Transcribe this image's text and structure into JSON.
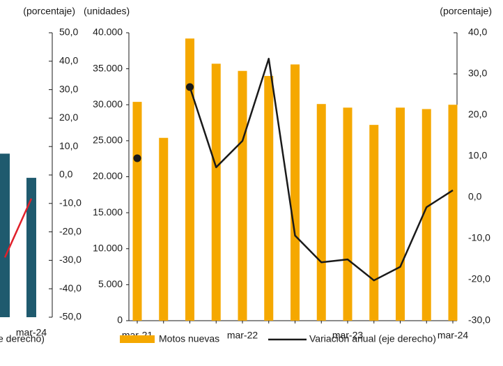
{
  "chart_data": [
    {
      "type": "combo",
      "y2label": "(porcentaje)",
      "y2lim": [
        -50,
        50
      ],
      "y2ticks": [
        {
          "value": 50,
          "label": "50,0"
        },
        {
          "value": 40,
          "label": "40,0"
        },
        {
          "value": 30,
          "label": "30,0"
        },
        {
          "value": 20,
          "label": "20,0"
        },
        {
          "value": 10,
          "label": "10,0"
        },
        {
          "value": 0,
          "label": "0,0"
        },
        {
          "value": -10,
          "label": "-10,0"
        },
        {
          "value": -20,
          "label": "-20,0"
        },
        {
          "value": -30,
          "label": "-30,0"
        },
        {
          "value": -40,
          "label": "-40,0"
        },
        {
          "value": -50,
          "label": "-50,0"
        }
      ],
      "categories": [
        null,
        "mar-24"
      ],
      "series": [
        {
          "kind": "bar",
          "axis": "y2",
          "color": "#1f5a6e",
          "values": [
            7.5,
            -1.0
          ]
        },
        {
          "kind": "line",
          "axis": "y2",
          "name": "e derecho)",
          "color": "#e0202a",
          "values": [
            -29,
            -8.3
          ]
        }
      ]
    },
    {
      "type": "combo",
      "ylabel": "(unidades)",
      "y2label": "(porcentaje)",
      "ylim": [
        0,
        40000
      ],
      "yticks": [
        0,
        {
          "value": 5000,
          "label": "5.000"
        },
        {
          "value": 10000,
          "label": "10.000"
        },
        {
          "value": 15000,
          "label": "15.000"
        },
        {
          "value": 20000,
          "label": "20.000"
        },
        {
          "value": 25000,
          "label": "25.000"
        },
        {
          "value": 30000,
          "label": "30.000"
        },
        {
          "value": 35000,
          "label": "35.000"
        },
        {
          "value": 40000,
          "label": "40.000"
        }
      ],
      "y2lim": [
        -30,
        40
      ],
      "y2ticks": [
        {
          "value": 40,
          "label": "40,0"
        },
        {
          "value": 30,
          "label": "30,0"
        },
        {
          "value": 20,
          "label": "20,0"
        },
        {
          "value": 10,
          "label": "10,0"
        },
        {
          "value": 0,
          "label": "0,0"
        },
        {
          "value": -10,
          "label": "-10,0"
        },
        {
          "value": -20,
          "label": "-20,0"
        },
        {
          "value": -30,
          "label": "-30,0"
        }
      ],
      "categories": [
        "mar-21",
        null,
        null,
        null,
        "mar-22",
        null,
        null,
        null,
        "mar-23",
        null,
        null,
        null,
        "mar-24"
      ],
      "series": [
        {
          "kind": "bar",
          "name": "Motos nuevas",
          "color": "#f5a800",
          "values": [
            30400,
            25400,
            39200,
            35700,
            34700,
            34000,
            35600,
            30100,
            29600,
            27200,
            29600,
            29400,
            30000
          ]
        },
        {
          "kind": "line",
          "axis": "y2",
          "name": "Variación anual (eje derecho)",
          "color": "#1a1a1a",
          "values": [
            9.5,
            null,
            26.8,
            7.3,
            13.7,
            33.7,
            -9.3,
            -15.8,
            -15.1,
            -20.2,
            -16.9,
            -2.4,
            1.7
          ]
        }
      ]
    }
  ]
}
